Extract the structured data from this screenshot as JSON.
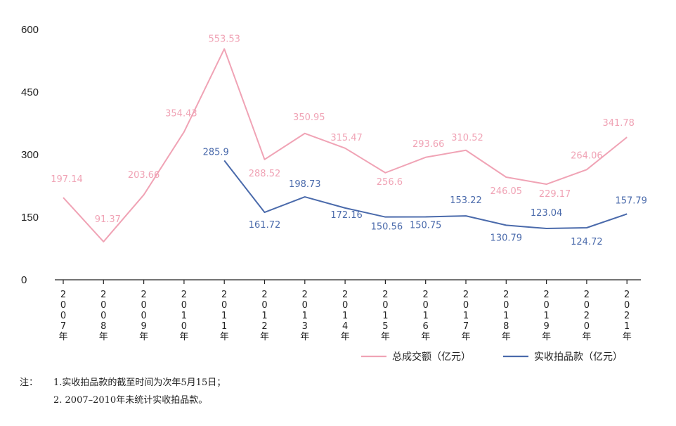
{
  "chart_data": {
    "type": "line",
    "title": "",
    "xlabel": "",
    "ylabel": "",
    "categories": [
      "2007年",
      "2008年",
      "2009年",
      "2010年",
      "2011年",
      "2012年",
      "2013年",
      "2014年",
      "2015年",
      "2016年",
      "2017年",
      "2018年",
      "2019年",
      "2020年",
      "2021年"
    ],
    "ylim": [
      0,
      600
    ],
    "yticks": [
      "0",
      "150",
      "300",
      "450",
      "600"
    ],
    "grid": false,
    "legend_position": "bottom-right",
    "series": [
      {
        "name": "总成交额（亿元）",
        "color": "#f0a3b5",
        "values": [
          197.14,
          91.37,
          203.66,
          354.43,
          553.53,
          288.52,
          350.95,
          315.47,
          256.6,
          293.66,
          310.52,
          246.05,
          229.17,
          264.06,
          341.78
        ],
        "labels": [
          "197.14",
          "91.37",
          "203.66",
          "354.43",
          "553.53",
          "288.52",
          "350.95",
          "315.47",
          "256.6",
          "293.66",
          "310.52",
          "246.05",
          "229.17",
          "264.06",
          "341.78"
        ]
      },
      {
        "name": "实收拍品款（亿元）",
        "color": "#4a6aab",
        "values": [
          null,
          null,
          null,
          null,
          285.9,
          161.72,
          198.73,
          172.16,
          150.56,
          150.75,
          153.22,
          130.79,
          123.04,
          124.72,
          157.79
        ],
        "labels": [
          null,
          null,
          null,
          null,
          "285.9",
          "161.72",
          "198.73",
          "172.16",
          "150.56",
          "150.75",
          "153.22",
          "130.79",
          "123.04",
          "124.72",
          "157.79"
        ]
      }
    ]
  },
  "notes": {
    "prefix": "注：",
    "line1": "1.实收拍品款的截至时间为次年5月15日；",
    "line2": "2. 2007–2010年未统计实收拍品款。"
  }
}
